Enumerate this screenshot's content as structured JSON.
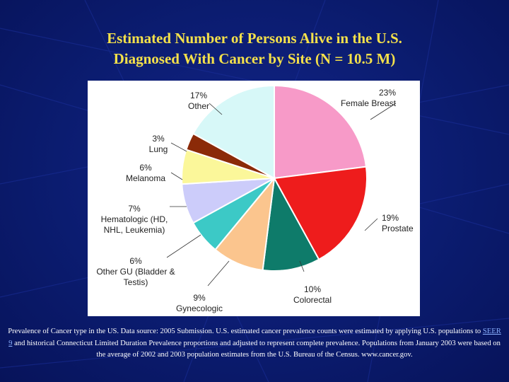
{
  "title": {
    "line1": "Estimated Number of Persons Alive in the U.S.",
    "line2": "Diagnosed With Cancer by Site (N = 10.5 M)"
  },
  "chart_data": {
    "type": "pie",
    "slices": [
      {
        "pct_label": "23%",
        "name": "Female Breast",
        "value": 23,
        "color": "#f79ac8"
      },
      {
        "pct_label": "19%",
        "name": "Prostate",
        "value": 19,
        "color": "#ee1c1c"
      },
      {
        "pct_label": "10%",
        "name": "Colorectal",
        "value": 10,
        "color": "#0e7b6a"
      },
      {
        "pct_label": "9%",
        "name": "Gynecologic",
        "value": 9,
        "color": "#fbc58e"
      },
      {
        "pct_label": "6%",
        "name": "Other GU (Bladder & Testis)",
        "value": 6,
        "color": "#3cc9c6"
      },
      {
        "pct_label": "7%",
        "name": "Hematologic (HD, NHL, Leukemia)",
        "value": 7,
        "color": "#ccccfa"
      },
      {
        "pct_label": "6%",
        "name": "Melanoma",
        "value": 6,
        "color": "#fbf79a"
      },
      {
        "pct_label": "3%",
        "name": "Lung",
        "value": 3,
        "color": "#8b2a08"
      },
      {
        "pct_label": "17%",
        "name": "Other",
        "value": 17,
        "color": "#d7f8f8"
      }
    ]
  },
  "footnote": {
    "part1": "Prevalence of Cancer type in the US. Data source: 2005 Submission. U.S. estimated cancer prevalence counts were estimated by applying U.S. populations to ",
    "link": "SEER 9",
    "part2": " and historical Connecticut Limited Duration Prevalence proportions and adjusted to represent complete prevalence. Populations from January 2003 were based on the average of 2002 and 2003 population estimates from the U.S. Bureau of the Census. www.cancer.gov."
  }
}
